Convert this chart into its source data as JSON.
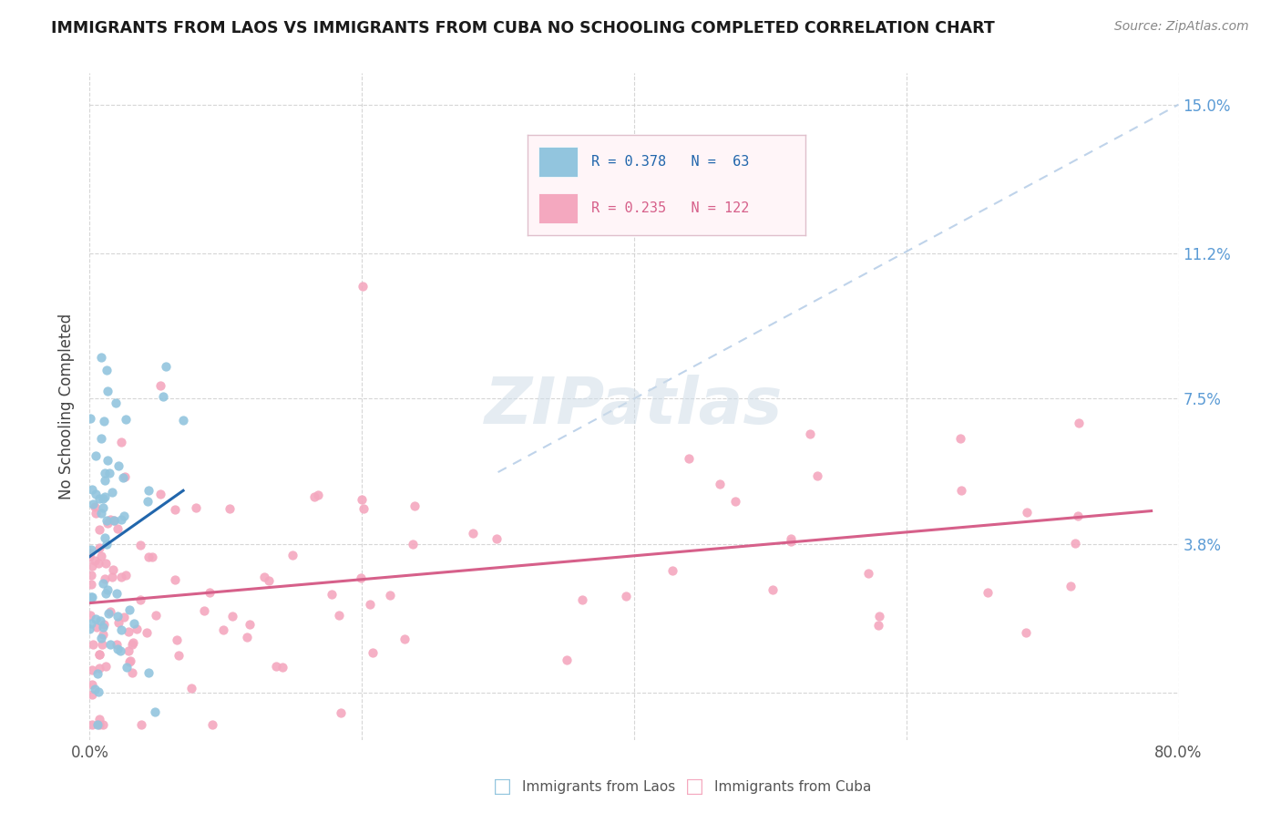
{
  "title": "IMMIGRANTS FROM LAOS VS IMMIGRANTS FROM CUBA NO SCHOOLING COMPLETED CORRELATION CHART",
  "source": "Source: ZipAtlas.com",
  "ylabel": "No Schooling Completed",
  "xlim": [
    0.0,
    0.8
  ],
  "ylim": [
    -0.012,
    0.158
  ],
  "laos_R": 0.378,
  "laos_N": 63,
  "cuba_R": 0.235,
  "cuba_N": 122,
  "laos_color": "#92c5de",
  "cuba_color": "#f4a8bf",
  "laos_line_color": "#2166ac",
  "cuba_line_color": "#d6608a",
  "diagonal_color": "#b8cfe8",
  "grid_color": "#cccccc",
  "background_color": "#ffffff",
  "right_tick_color": "#5b9bd5",
  "ytick_positions": [
    0.0,
    0.038,
    0.075,
    0.112,
    0.15
  ],
  "ytick_labels": [
    "",
    "3.8%",
    "7.5%",
    "11.2%",
    "15.0%"
  ],
  "xtick_positions": [
    0.0,
    0.2,
    0.4,
    0.6,
    0.8
  ],
  "xtick_labels": [
    "0.0%",
    "",
    "",
    "",
    "80.0%"
  ]
}
